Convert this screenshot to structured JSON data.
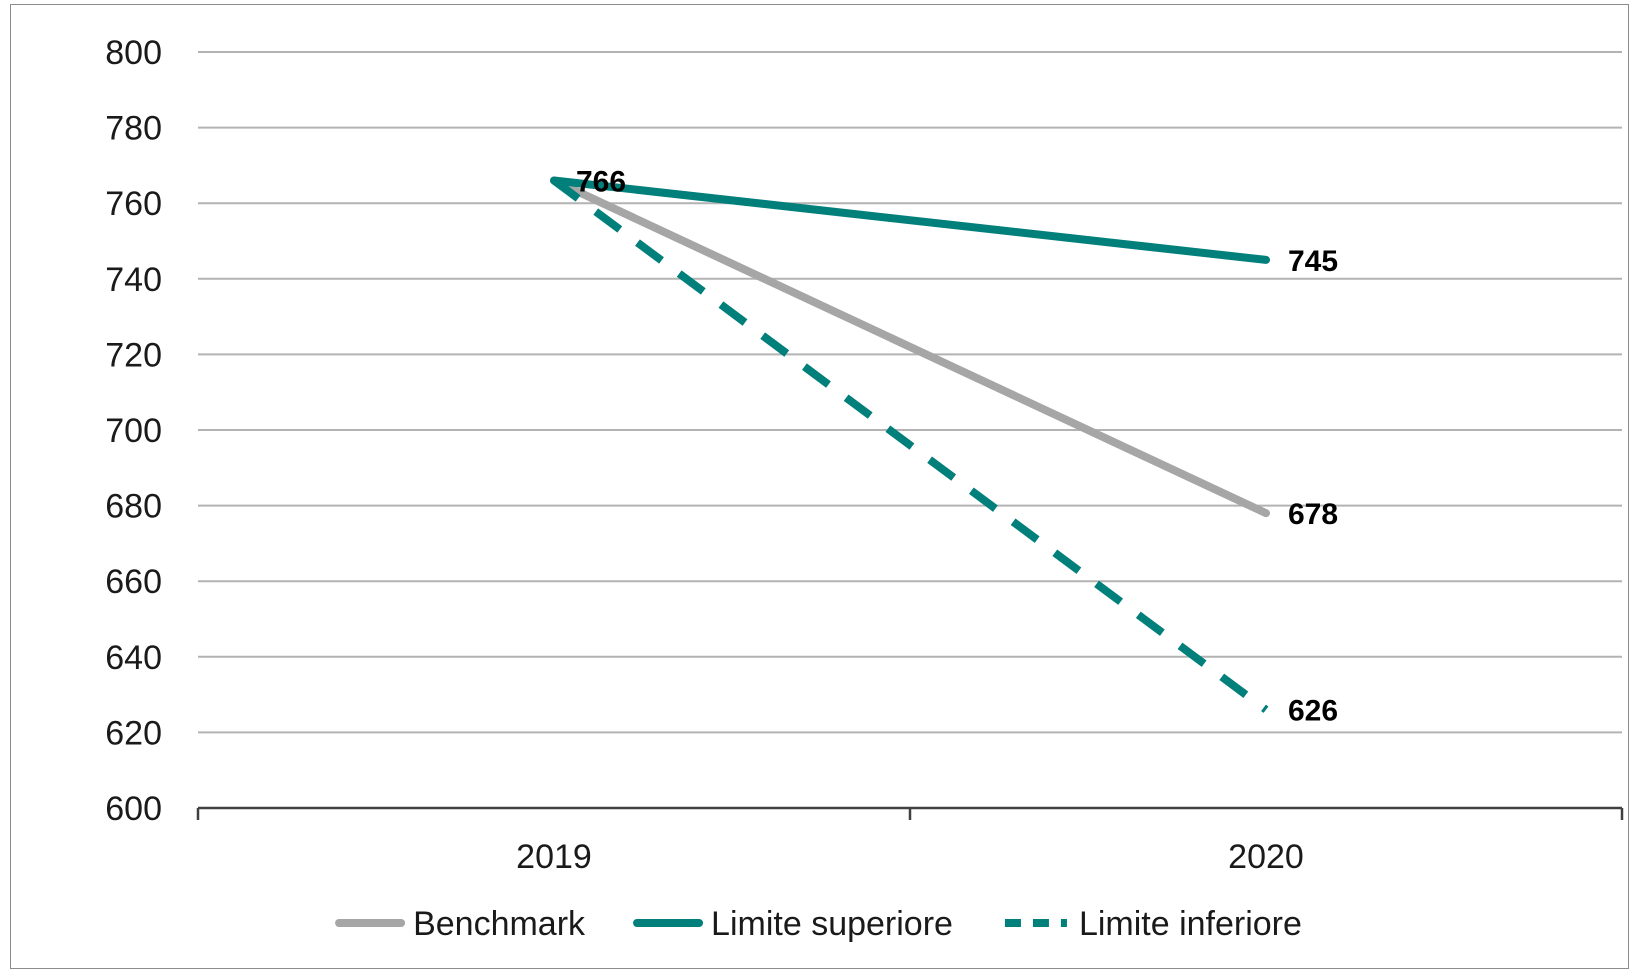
{
  "chart_data": {
    "type": "line",
    "title": "",
    "xlabel": "",
    "ylabel": "",
    "categories": [
      "2019",
      "2020"
    ],
    "ylim": [
      600,
      800
    ],
    "yticks": [
      600,
      620,
      640,
      660,
      680,
      700,
      720,
      740,
      760,
      780,
      800
    ],
    "grid": true,
    "legend_position": "bottom",
    "series": [
      {
        "name": "Benchmark",
        "values": [
          766,
          678
        ],
        "color": "#a6a6a6",
        "style": "solid",
        "labels": [
          "",
          "678"
        ]
      },
      {
        "name": "Limite superiore",
        "values": [
          766,
          745
        ],
        "color": "#007f7b",
        "style": "solid",
        "labels": [
          "766",
          "745"
        ]
      },
      {
        "name": "Limite inferiore",
        "values": [
          766,
          626
        ],
        "color": "#007f7b",
        "style": "dashed",
        "labels": [
          "",
          "626"
        ]
      }
    ]
  }
}
